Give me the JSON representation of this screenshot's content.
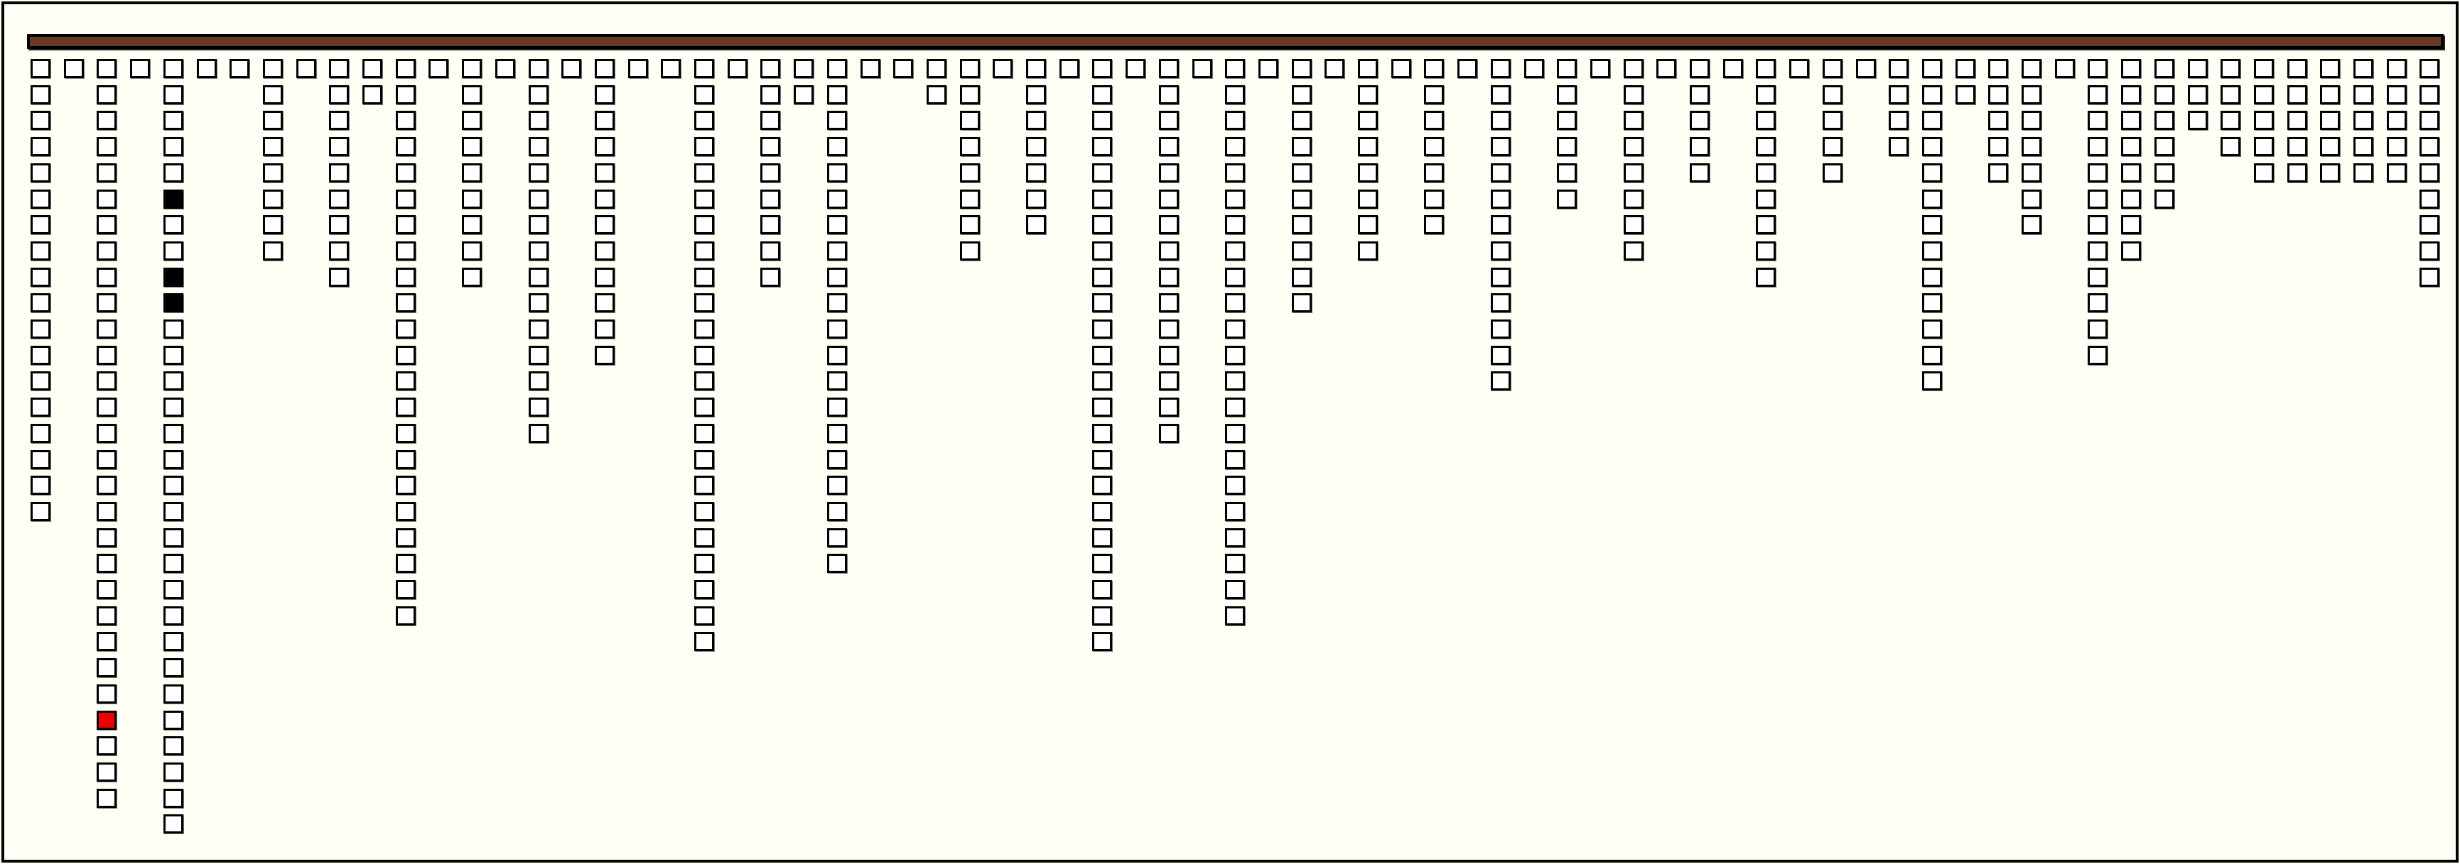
{
  "board": {
    "bar_color": "#6b3a22",
    "background_color": "#fffff6",
    "cell_states": {
      "empty": "#ffffff",
      "black": "#000000",
      "red": "#ee0000"
    },
    "columns": [
      {
        "height": 18
      },
      {
        "height": 1
      },
      {
        "height": 29,
        "marked": [
          {
            "row": 25,
            "state": "red"
          }
        ]
      },
      {
        "height": 1
      },
      {
        "height": 30,
        "marked": [
          {
            "row": 5,
            "state": "black"
          },
          {
            "row": 8,
            "state": "black"
          },
          {
            "row": 9,
            "state": "black"
          }
        ]
      },
      {
        "height": 1
      },
      {
        "height": 1
      },
      {
        "height": 8
      },
      {
        "height": 1
      },
      {
        "height": 9
      },
      {
        "height": 2
      },
      {
        "height": 22
      },
      {
        "height": 1
      },
      {
        "height": 9
      },
      {
        "height": 1
      },
      {
        "height": 15
      },
      {
        "height": 1
      },
      {
        "height": 12
      },
      {
        "height": 1
      },
      {
        "height": 1
      },
      {
        "height": 23
      },
      {
        "height": 1
      },
      {
        "height": 9
      },
      {
        "height": 2
      },
      {
        "height": 20
      },
      {
        "height": 1
      },
      {
        "height": 1
      },
      {
        "height": 2
      },
      {
        "height": 8
      },
      {
        "height": 1
      },
      {
        "height": 7
      },
      {
        "height": 1
      },
      {
        "height": 23
      },
      {
        "height": 1
      },
      {
        "height": 15
      },
      {
        "height": 1
      },
      {
        "height": 22
      },
      {
        "height": 1
      },
      {
        "height": 10
      },
      {
        "height": 1
      },
      {
        "height": 8
      },
      {
        "height": 1
      },
      {
        "height": 7
      },
      {
        "height": 1
      },
      {
        "height": 13
      },
      {
        "height": 1
      },
      {
        "height": 6
      },
      {
        "height": 1
      },
      {
        "height": 8
      },
      {
        "height": 1
      },
      {
        "height": 5
      },
      {
        "height": 1
      },
      {
        "height": 9
      },
      {
        "height": 1
      },
      {
        "height": 5
      },
      {
        "height": 1
      },
      {
        "height": 4
      },
      {
        "height": 13
      },
      {
        "height": 2
      },
      {
        "height": 5
      },
      {
        "height": 7
      },
      {
        "height": 1
      },
      {
        "height": 12
      },
      {
        "height": 8
      },
      {
        "height": 6
      },
      {
        "height": 3
      },
      {
        "height": 4
      },
      {
        "height": 5
      },
      {
        "height": 5
      },
      {
        "height": 5
      },
      {
        "height": 5
      },
      {
        "height": 5
      },
      {
        "height": 9
      }
    ]
  }
}
